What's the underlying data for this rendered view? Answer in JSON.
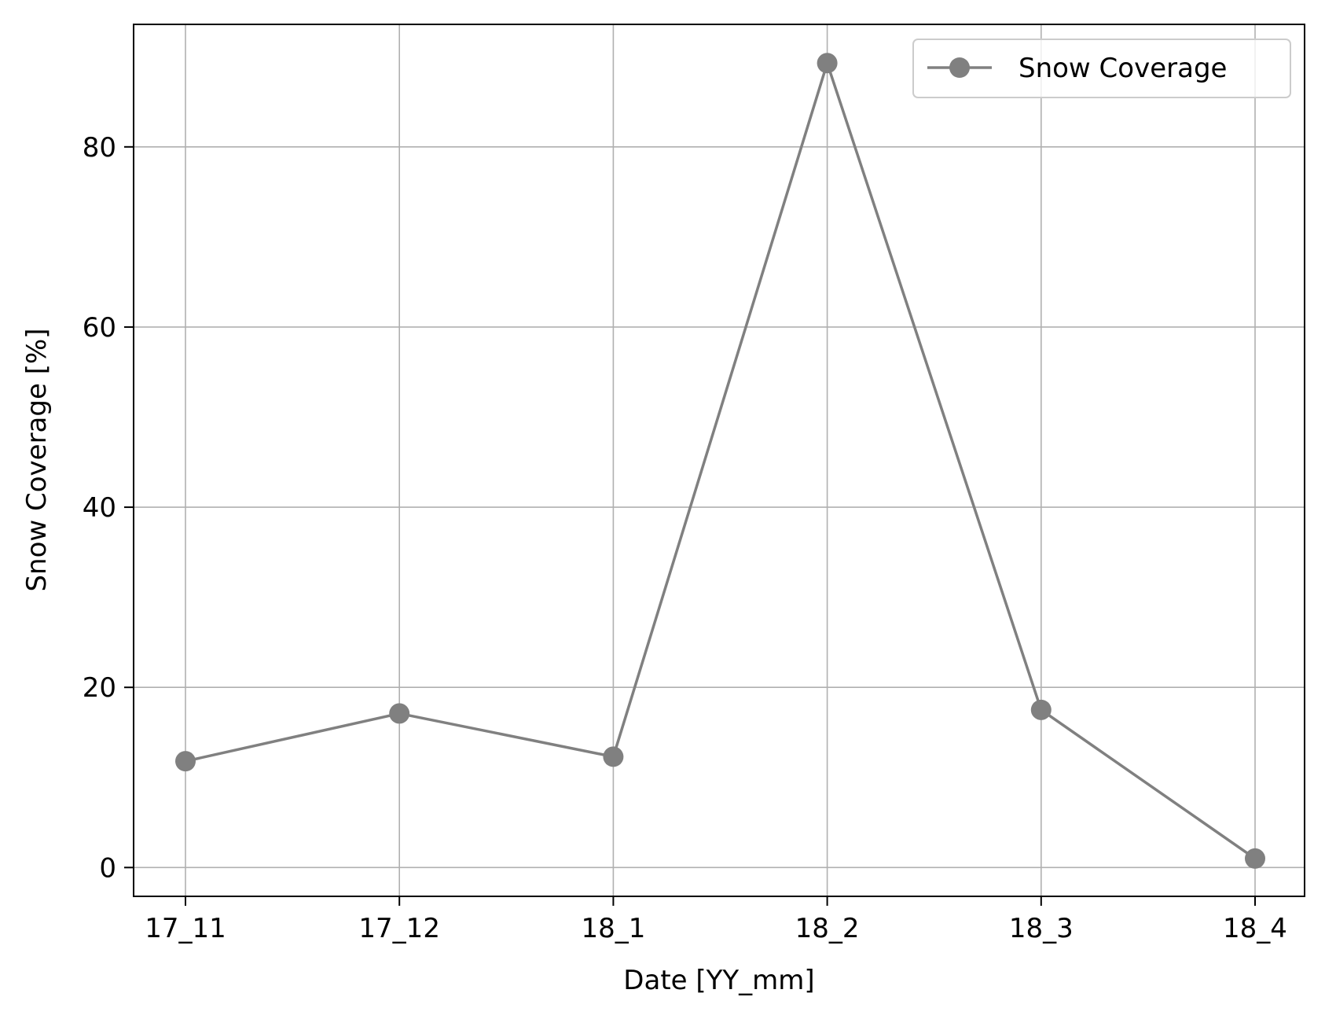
{
  "chart_data": {
    "type": "line",
    "title": "",
    "xlabel": "Date [YY_mm]",
    "ylabel": "Snow Coverage [%]",
    "categories": [
      "17_11",
      "17_12",
      "18_1",
      "18_2",
      "18_3",
      "18_4"
    ],
    "series": [
      {
        "name": "Snow Coverage",
        "values": [
          11.8,
          17.1,
          12.3,
          89.3,
          17.5,
          1.0
        ],
        "color": "#808080",
        "marker": "circle"
      }
    ],
    "ylim": [
      -3.2,
      93.6
    ],
    "yticks": [
      0,
      20,
      40,
      60,
      80
    ],
    "grid": true,
    "legend_position": "top-right"
  }
}
